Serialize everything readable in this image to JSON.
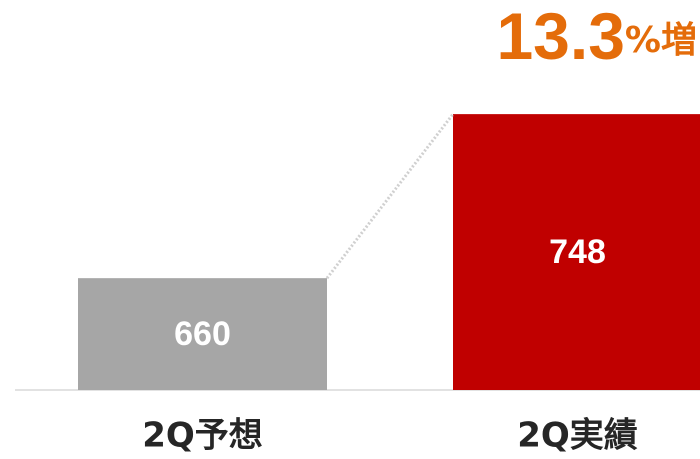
{
  "chart_data": {
    "type": "bar",
    "annotation": {
      "number": "13.3",
      "suffix": "%増"
    },
    "categories": [
      "2Q予想",
      "2Q実績"
    ],
    "values": [
      660,
      748
    ],
    "colors": [
      "#a6a6a6",
      "#c00000"
    ],
    "annotation_color": "#e46c0a",
    "ylim": [
      600,
      750
    ],
    "connector": true
  }
}
